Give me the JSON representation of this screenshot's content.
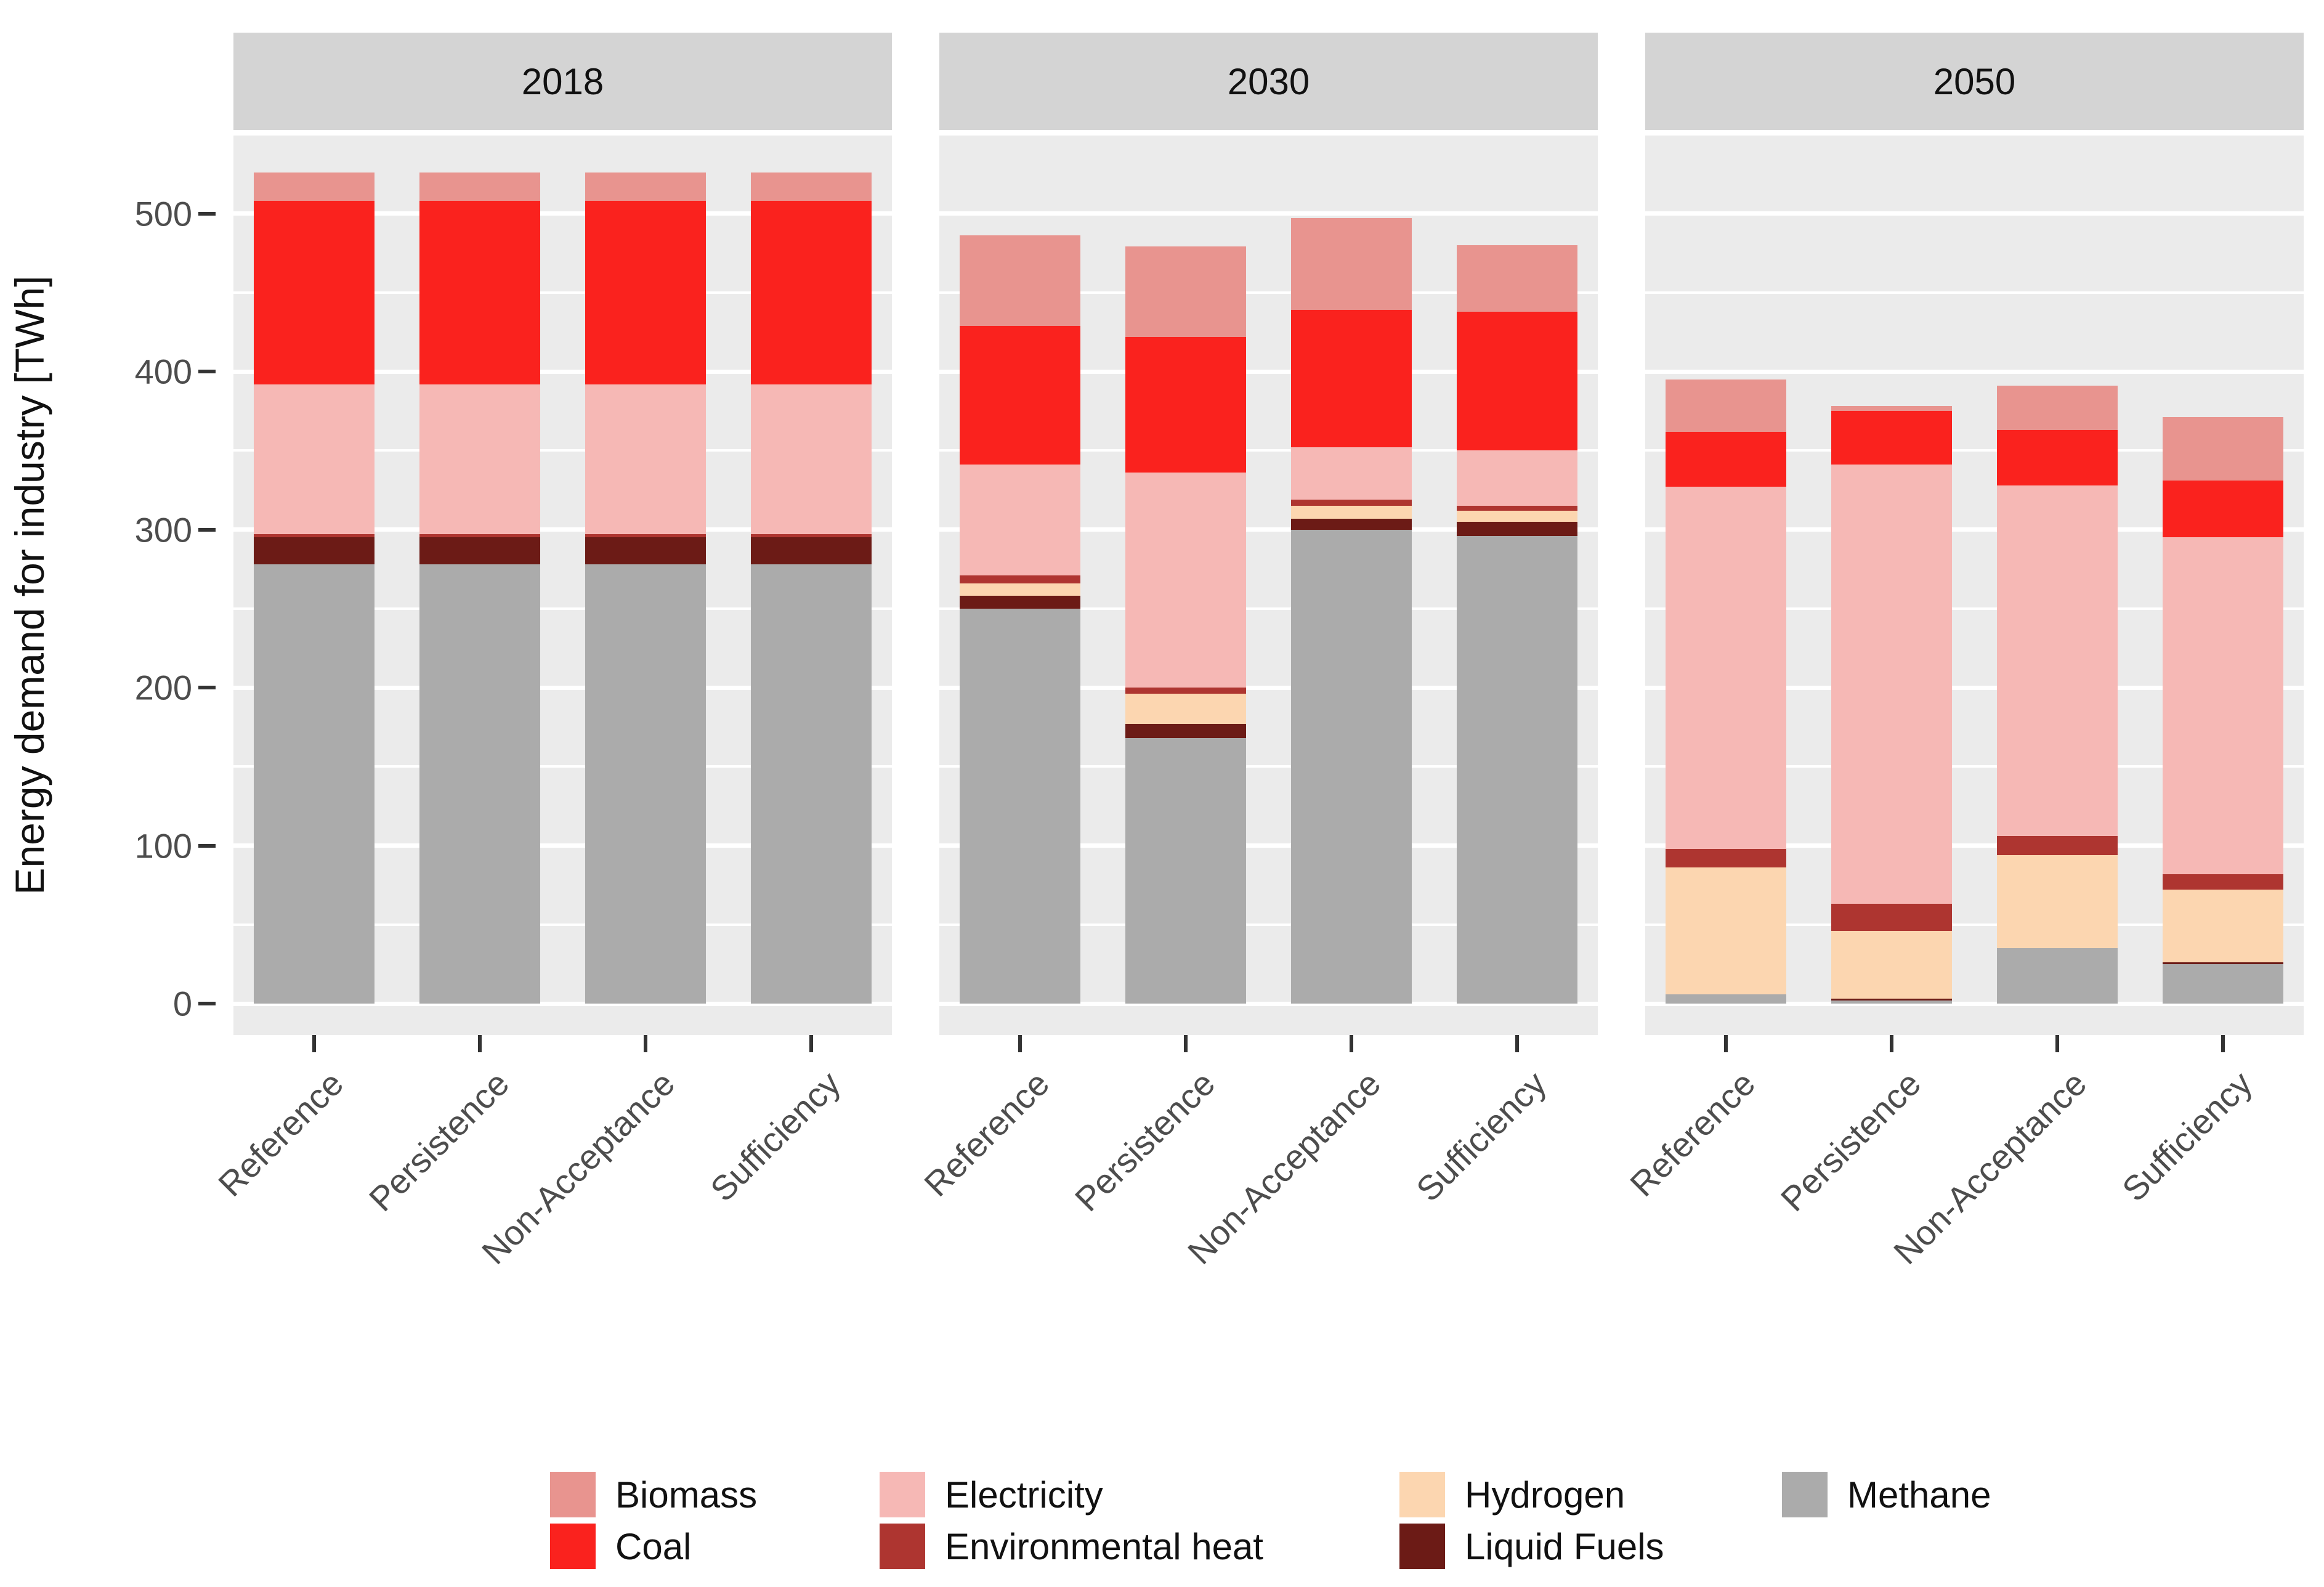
{
  "y_axis": {
    "label": "Energy demand for industry [TWh]",
    "ticks": [
      0,
      100,
      200,
      300,
      400,
      500
    ]
  },
  "facet_labels": [
    "2018",
    "2030",
    "2050"
  ],
  "category_labels": [
    "Reference",
    "Persistence",
    "Non-Acceptance",
    "Sufficiency"
  ],
  "legend": {
    "columns": [
      [
        "Biomass",
        "Coal"
      ],
      [
        "Electricity",
        "Environmental heat"
      ],
      [
        "Hydrogen",
        "Liquid Fuels"
      ],
      [
        "Methane"
      ]
    ]
  },
  "colors": {
    "Biomass": "#E8948F",
    "Coal": "#FA221E",
    "Electricity": "#F6B8B5",
    "Environmental heat": "#AE3530",
    "Hydrogen": "#FCD6B0",
    "Liquid Fuels": "#6C1B16",
    "Methane": "#ABABAB",
    "panel_background": "#EBEBEB",
    "strip_background": "#D4D4D4",
    "gridline": "#FFFFFF",
    "axis_text": "#4D4D4D",
    "tick_mark": "#333333"
  },
  "chart_data": {
    "type": "bar",
    "stacked": true,
    "title": "",
    "xlabel": "",
    "ylabel": "Energy demand for industry [TWh]",
    "ylim": [
      0,
      550
    ],
    "grid": "white major gridlines every 100 TWh, minor every 50 TWh, on gray panels",
    "legend_position": "bottom",
    "facets": [
      "2018",
      "2030",
      "2050"
    ],
    "categories": [
      "Reference",
      "Persistence",
      "Non-Acceptance",
      "Sufficiency"
    ],
    "stack_order_bottom_to_top": [
      "Methane",
      "Liquid Fuels",
      "Hydrogen",
      "Environmental heat",
      "Electricity",
      "Coal",
      "Biomass"
    ],
    "values_twh": {
      "2018": {
        "Reference": {
          "Methane": 278,
          "Liquid Fuels": 17,
          "Hydrogen": 0,
          "Environmental heat": 2,
          "Electricity": 95,
          "Coal": 116,
          "Biomass": 18
        },
        "Persistence": {
          "Methane": 278,
          "Liquid Fuels": 17,
          "Hydrogen": 0,
          "Environmental heat": 2,
          "Electricity": 95,
          "Coal": 116,
          "Biomass": 18
        },
        "Non-Acceptance": {
          "Methane": 278,
          "Liquid Fuels": 17,
          "Hydrogen": 0,
          "Environmental heat": 2,
          "Electricity": 95,
          "Coal": 116,
          "Biomass": 18
        },
        "Sufficiency": {
          "Methane": 278,
          "Liquid Fuels": 17,
          "Hydrogen": 0,
          "Environmental heat": 2,
          "Electricity": 95,
          "Coal": 116,
          "Biomass": 18
        }
      },
      "2030": {
        "Reference": {
          "Methane": 250,
          "Liquid Fuels": 8,
          "Hydrogen": 8,
          "Environmental heat": 5,
          "Electricity": 70,
          "Coal": 88,
          "Biomass": 57
        },
        "Persistence": {
          "Methane": 168,
          "Liquid Fuels": 9,
          "Hydrogen": 19,
          "Environmental heat": 4,
          "Electricity": 136,
          "Coal": 86,
          "Biomass": 57
        },
        "Non-Acceptance": {
          "Methane": 300,
          "Liquid Fuels": 7,
          "Hydrogen": 8,
          "Environmental heat": 4,
          "Electricity": 33,
          "Coal": 87,
          "Biomass": 58
        },
        "Sufficiency": {
          "Methane": 296,
          "Liquid Fuels": 9,
          "Hydrogen": 7,
          "Environmental heat": 3,
          "Electricity": 35,
          "Coal": 88,
          "Biomass": 42
        }
      },
      "2050": {
        "Reference": {
          "Methane": 6,
          "Liquid Fuels": 0,
          "Hydrogen": 80,
          "Environmental heat": 12,
          "Electricity": 229,
          "Coal": 35,
          "Biomass": 33
        },
        "Persistence": {
          "Methane": 2,
          "Liquid Fuels": 1,
          "Hydrogen": 43,
          "Environmental heat": 17,
          "Electricity": 278,
          "Coal": 34,
          "Biomass": 3
        },
        "Non-Acceptance": {
          "Methane": 35,
          "Liquid Fuels": 0,
          "Hydrogen": 59,
          "Environmental heat": 12,
          "Electricity": 222,
          "Coal": 35,
          "Biomass": 28
        },
        "Sufficiency": {
          "Methane": 25,
          "Liquid Fuels": 1,
          "Hydrogen": 46,
          "Environmental heat": 10,
          "Electricity": 213,
          "Coal": 36,
          "Biomass": 40
        }
      }
    }
  }
}
